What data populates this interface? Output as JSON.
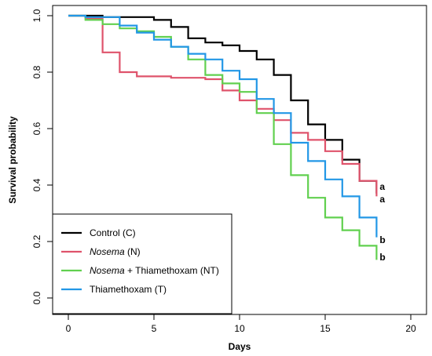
{
  "chart_data": {
    "type": "line",
    "xlabel": "Days",
    "ylabel": "Survival probability",
    "xlim": [
      0,
      20
    ],
    "ylim": [
      0,
      1
    ],
    "x_ticks": [
      0,
      5,
      10,
      15,
      20
    ],
    "y_ticks": [
      "0.0",
      "0.2",
      "0.4",
      "0.6",
      "0.8",
      "1.0"
    ],
    "grid": false,
    "legend_position": "bottom-left",
    "series": [
      {
        "name": "Control (C)",
        "color": "#000000",
        "steps": [
          [
            0,
            1.0
          ],
          [
            1,
            1.0
          ],
          [
            2,
            0.995
          ],
          [
            3,
            0.995
          ],
          [
            4,
            0.995
          ],
          [
            5,
            0.985
          ],
          [
            6,
            0.96
          ],
          [
            7,
            0.92
          ],
          [
            8,
            0.905
          ],
          [
            9,
            0.895
          ],
          [
            10,
            0.875
          ],
          [
            11,
            0.845
          ],
          [
            12,
            0.79
          ],
          [
            13,
            0.7
          ],
          [
            14,
            0.615
          ],
          [
            15,
            0.56
          ],
          [
            16,
            0.49
          ],
          [
            17,
            0.415
          ],
          [
            18,
            0.37
          ]
        ]
      },
      {
        "name": "Nosema (N)",
        "color": "#df536b",
        "steps": [
          [
            0,
            1.0
          ],
          [
            1,
            0.99
          ],
          [
            2,
            0.87
          ],
          [
            3,
            0.8
          ],
          [
            4,
            0.785
          ],
          [
            5,
            0.785
          ],
          [
            6,
            0.78
          ],
          [
            7,
            0.78
          ],
          [
            8,
            0.775
          ],
          [
            9,
            0.735
          ],
          [
            10,
            0.7
          ],
          [
            11,
            0.67
          ],
          [
            12,
            0.63
          ],
          [
            13,
            0.585
          ],
          [
            14,
            0.56
          ],
          [
            15,
            0.52
          ],
          [
            16,
            0.475
          ],
          [
            17,
            0.415
          ],
          [
            18,
            0.36
          ]
        ]
      },
      {
        "name": "Nosema + Thiamethoxam (NT)",
        "color": "#61d04f",
        "steps": [
          [
            0,
            1.0
          ],
          [
            1,
            0.985
          ],
          [
            2,
            0.97
          ],
          [
            3,
            0.955
          ],
          [
            4,
            0.945
          ],
          [
            5,
            0.925
          ],
          [
            6,
            0.89
          ],
          [
            7,
            0.845
          ],
          [
            8,
            0.79
          ],
          [
            9,
            0.76
          ],
          [
            10,
            0.73
          ],
          [
            11,
            0.655
          ],
          [
            12,
            0.545
          ],
          [
            13,
            0.435
          ],
          [
            14,
            0.355
          ],
          [
            15,
            0.285
          ],
          [
            16,
            0.24
          ],
          [
            17,
            0.185
          ],
          [
            18,
            0.135
          ]
        ]
      },
      {
        "name": "Thiamethoxam (T)",
        "color": "#2297e6",
        "steps": [
          [
            0,
            1.0
          ],
          [
            1,
            0.995
          ],
          [
            2,
            0.995
          ],
          [
            3,
            0.965
          ],
          [
            4,
            0.94
          ],
          [
            5,
            0.915
          ],
          [
            6,
            0.89
          ],
          [
            7,
            0.865
          ],
          [
            8,
            0.845
          ],
          [
            9,
            0.805
          ],
          [
            10,
            0.775
          ],
          [
            11,
            0.705
          ],
          [
            12,
            0.655
          ],
          [
            13,
            0.55
          ],
          [
            14,
            0.485
          ],
          [
            15,
            0.42
          ],
          [
            16,
            0.36
          ],
          [
            17,
            0.285
          ],
          [
            18,
            0.215
          ]
        ]
      }
    ],
    "significance_labels": [
      {
        "text": "a",
        "x": 18,
        "y": 0.395
      },
      {
        "text": "a",
        "x": 18,
        "y": 0.35
      },
      {
        "text": "b",
        "x": 18,
        "y": 0.205
      },
      {
        "text": "b",
        "x": 18,
        "y": 0.145
      }
    ],
    "legend": [
      {
        "series": 0,
        "parts": [
          {
            "text": "Control (C)",
            "italic": false
          }
        ]
      },
      {
        "series": 1,
        "parts": [
          {
            "text": "Nosema",
            "italic": true
          },
          {
            "text": " (N)",
            "italic": false
          }
        ]
      },
      {
        "series": 2,
        "parts": [
          {
            "text": "Nosema",
            "italic": true
          },
          {
            "text": " + Thiamethoxam (NT)",
            "italic": false
          }
        ]
      },
      {
        "series": 3,
        "parts": [
          {
            "text": "Thiamethoxam (T)",
            "italic": false
          }
        ]
      }
    ]
  }
}
